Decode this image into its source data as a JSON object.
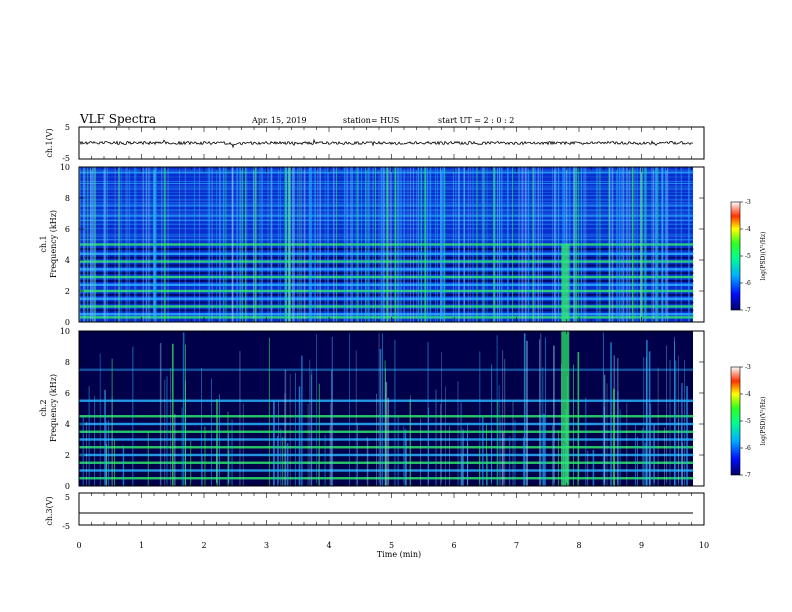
{
  "header": {
    "title": "VLF Spectra",
    "date": "Apr. 15, 2019",
    "station": "station= HUS",
    "start": "start  UT  =   2 : 0  : 2"
  },
  "chart_data": [
    {
      "type": "line",
      "name": "ch1-waveform",
      "ylabel": "ch.1(V)",
      "yticks": [
        "5",
        "-5"
      ],
      "ylim": [
        -5,
        5
      ],
      "x_range_min": [
        0,
        9.83
      ],
      "baseline": 0
    },
    {
      "type": "heatmap",
      "name": "ch1-spectrogram",
      "ylabel_channel": "ch.1",
      "ylabel": "Frequency (kHz)",
      "yticks": [
        "0",
        "2",
        "4",
        "6",
        "8",
        "10"
      ],
      "ylim": [
        0,
        10
      ],
      "colorbar": {
        "label": "log(PSD)(V²/Hz)",
        "ticks": [
          "-3",
          "-4",
          "-5",
          "-6",
          "-7"
        ],
        "range": [
          -7,
          -3
        ]
      },
      "bands_khz": [
        0.3,
        0.5,
        1.0,
        1.5,
        2.0,
        2.4,
        2.9,
        3.4,
        3.9,
        4.4,
        5.0,
        7.5
      ],
      "strong_burst_min": 7.78
    },
    {
      "type": "heatmap",
      "name": "ch2-spectrogram",
      "ylabel_channel": "ch.2",
      "ylabel": "Frequency (kHz)",
      "yticks": [
        "0",
        "2",
        "4",
        "6",
        "8",
        "10"
      ],
      "ylim": [
        0,
        10
      ],
      "colorbar": {
        "label": "log(PSD)(V²/Hz)",
        "ticks": [
          "-3",
          "-4",
          "-5",
          "-6",
          "-7"
        ],
        "range": [
          -7,
          -3
        ]
      },
      "bands_khz": [
        0.5,
        1.0,
        1.5,
        2.0,
        2.5,
        3.0,
        3.5,
        4.0,
        4.5,
        5.5,
        7.5
      ],
      "strong_burst_min": 7.78
    },
    {
      "type": "line",
      "name": "ch3-waveform",
      "ylabel": "ch.3(V)",
      "yticks": [
        "5",
        "-5"
      ],
      "ylim": [
        -5,
        5
      ],
      "baseline": -1
    }
  ],
  "xaxis": {
    "label": "Time (min)",
    "ticks": [
      "0",
      "1",
      "2",
      "3",
      "4",
      "5",
      "6",
      "7",
      "8",
      "9",
      "10"
    ],
    "range": [
      0,
      10
    ]
  },
  "colors": {
    "dark": "#00004a",
    "blue": "#0a2fd0",
    "cyan": "#2ab0ff",
    "green": "#2ee86a"
  }
}
